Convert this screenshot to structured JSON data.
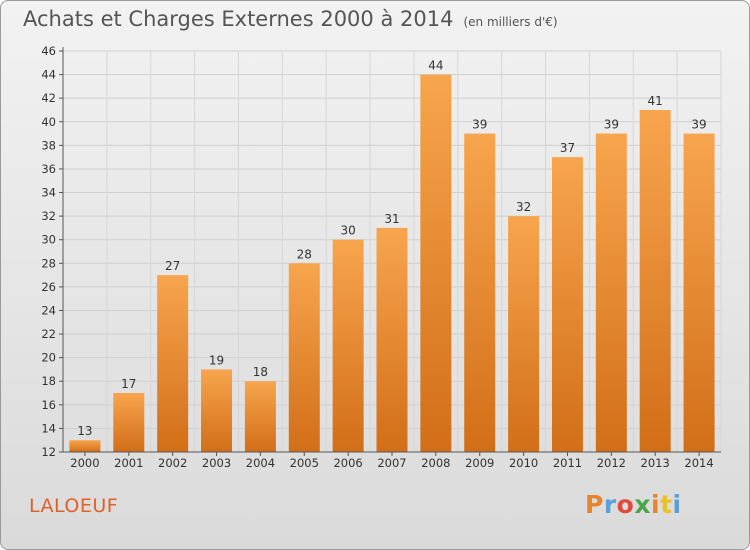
{
  "chart_data": {
    "type": "bar",
    "title": "Achats et Charges Externes 2000 à 2014",
    "unit_label": "(en milliers d'€)",
    "categories": [
      "2000",
      "2001",
      "2002",
      "2003",
      "2004",
      "2005",
      "2006",
      "2007",
      "2008",
      "2009",
      "2010",
      "2011",
      "2012",
      "2013",
      "2014"
    ],
    "values": [
      13,
      17,
      27,
      19,
      18,
      28,
      30,
      31,
      44,
      39,
      32,
      37,
      39,
      41,
      39
    ],
    "ylim": [
      12,
      46
    ],
    "yticks": [
      12,
      14,
      16,
      18,
      20,
      22,
      24,
      26,
      28,
      30,
      32,
      34,
      36,
      38,
      40,
      42,
      44,
      46
    ],
    "grid": true,
    "bar_color_top": "#f7a54e",
    "bar_color_bottom": "#d26e18"
  },
  "place_name": "LALOEUF",
  "brand": {
    "letters": [
      "P",
      "r",
      "o",
      "x",
      "i",
      "t",
      "i"
    ],
    "colors": [
      "#e8842c",
      "#5aa0d8",
      "#e04a3c",
      "#4aa64a",
      "#e8842c",
      "#e8c228",
      "#5aa0d8"
    ]
  }
}
